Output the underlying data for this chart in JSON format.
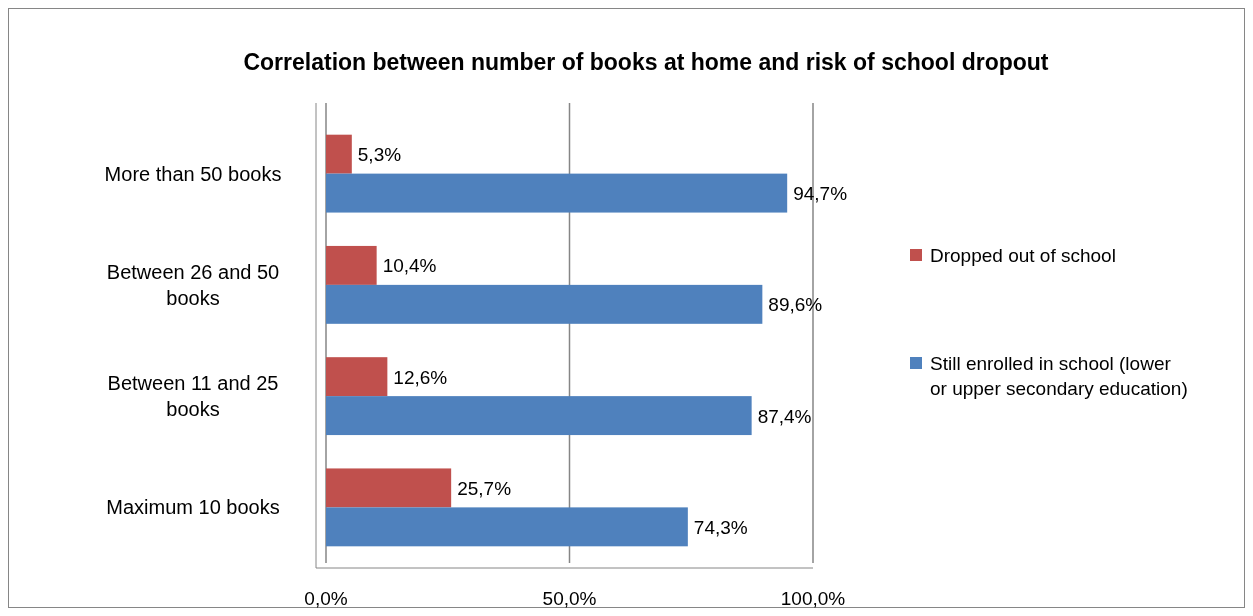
{
  "chart_data": {
    "type": "bar",
    "orientation": "horizontal",
    "title": "Correlation between number of books at home and risk of school dropout",
    "categories": [
      "More than 50 books",
      "Between 26 and 50 books",
      "Between 11 and 25 books",
      "Maximum 10 books"
    ],
    "series": [
      {
        "name": "Dropped out of school",
        "color": "#c0504d",
        "values": [
          5.3,
          10.4,
          12.6,
          25.7
        ],
        "value_labels": [
          "5,3%",
          "10,4%",
          "12,6%",
          "25,7%"
        ]
      },
      {
        "name": "Still enrolled in school (lower or upper secondary education)",
        "color": "#4f81bd",
        "values": [
          94.7,
          89.6,
          87.4,
          74.3
        ],
        "value_labels": [
          "94,7%",
          "89,6%",
          "87,4%",
          "74,3%"
        ]
      }
    ],
    "xlim": [
      0,
      100
    ],
    "xticks": [
      {
        "value": 0,
        "label": "0,0%"
      },
      {
        "value": 50,
        "label": "50,0%"
      },
      {
        "value": 100,
        "label": "100,0%"
      }
    ],
    "grid": "x",
    "legend": "right"
  }
}
